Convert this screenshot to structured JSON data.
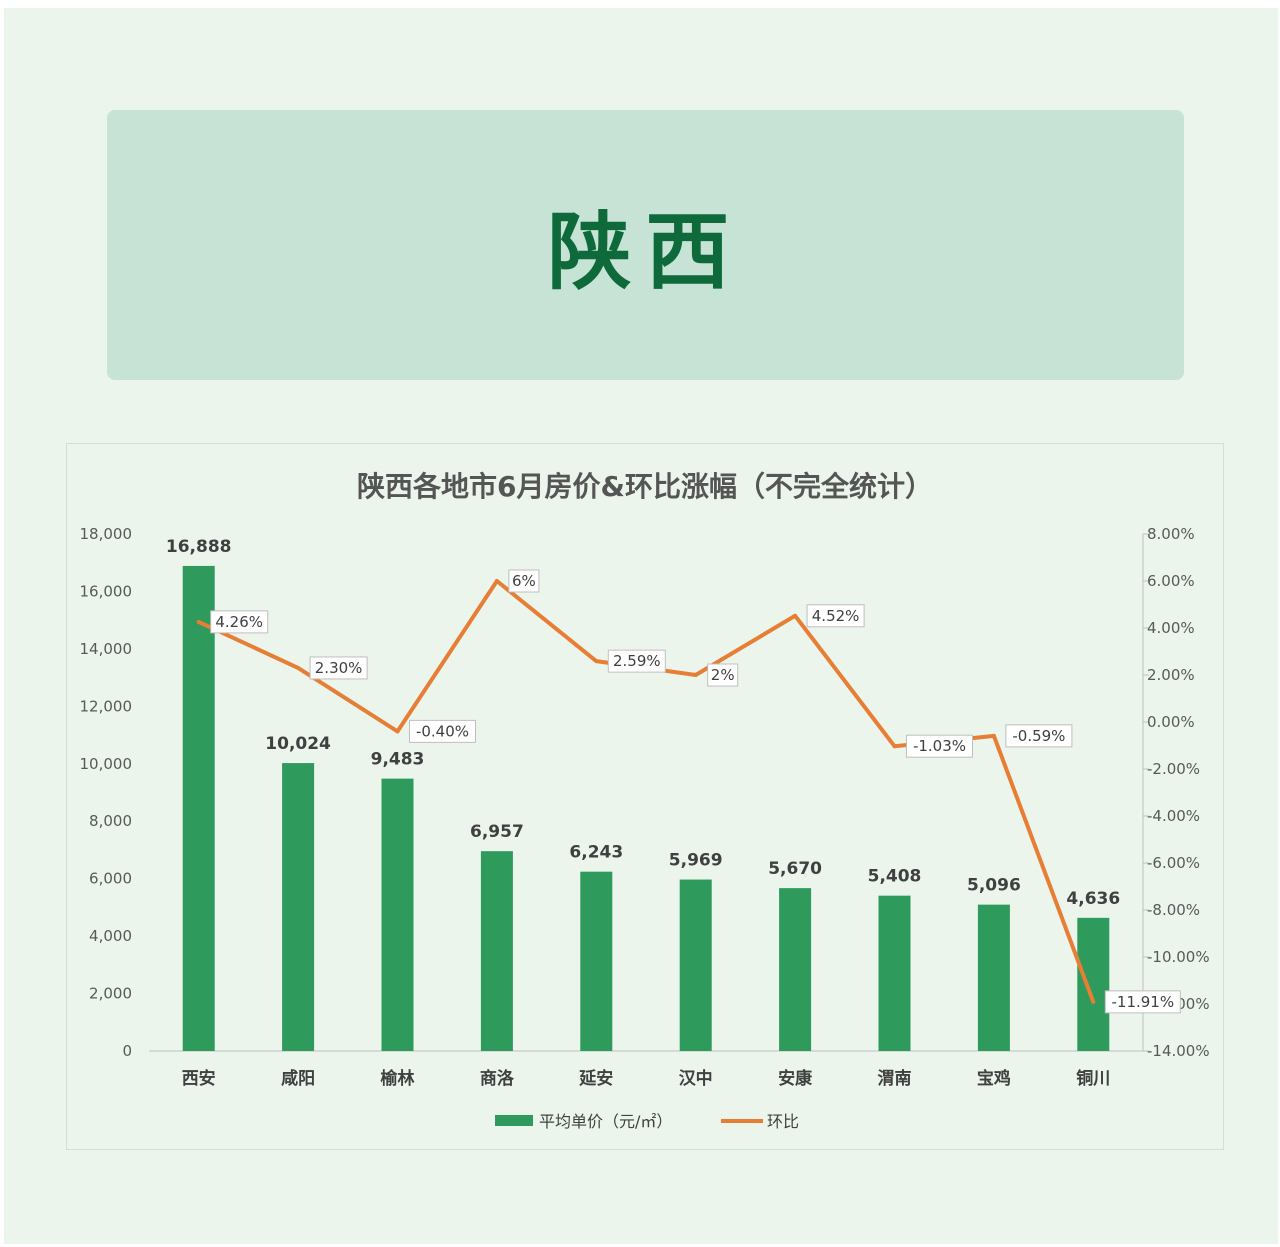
{
  "banner": {
    "title": "陕西"
  },
  "colors": {
    "bar": "#2e9a5c",
    "line": "#e67e35",
    "title": "#555555",
    "banner_text": "#0e6a3a",
    "banner_bg": "#c6e3d6"
  },
  "chart_data": {
    "type": "bar",
    "title": "陕西各地市6月房价&环比涨幅（不完全统计）",
    "categories": [
      "西安",
      "咸阳",
      "榆林",
      "商洛",
      "延安",
      "汉中",
      "安康",
      "渭南",
      "宝鸡",
      "铜川"
    ],
    "series": [
      {
        "name": "平均单价（元/㎡）",
        "type": "bar",
        "axis": "left",
        "values": [
          16888,
          10024,
          9483,
          6957,
          6243,
          5969,
          5670,
          5408,
          5096,
          4636
        ],
        "labels": [
          "16,888",
          "10,024",
          "9,483",
          "6,957",
          "6,243",
          "5,969",
          "5,670",
          "5,408",
          "5,096",
          "4,636"
        ]
      },
      {
        "name": "环比",
        "type": "line",
        "axis": "right",
        "values": [
          4.26,
          2.3,
          -0.4,
          6,
          2.59,
          2,
          4.52,
          -1.03,
          -0.59,
          -11.91
        ],
        "labels": [
          "4.26%",
          "2.30%",
          "-0.40%",
          "6%",
          "2.59%",
          "2%",
          "4.52%",
          "-1.03%",
          "-0.59%",
          "-11.91%"
        ]
      }
    ],
    "y_left": {
      "min": 0,
      "max": 18000,
      "step": 2000,
      "ticks": [
        "0",
        "2,000",
        "4,000",
        "6,000",
        "8,000",
        "10,000",
        "12,000",
        "14,000",
        "16,000",
        "18,000"
      ]
    },
    "y_right": {
      "min": -14,
      "max": 8,
      "step": 2,
      "ticks": [
        "-14.00%",
        "-12.00%",
        "-10.00%",
        "-8.00%",
        "-6.00%",
        "-4.00%",
        "-2.00%",
        "0.00%",
        "2.00%",
        "4.00%",
        "6.00%",
        "8.00%"
      ]
    },
    "grid": false,
    "legend": "bottom"
  }
}
